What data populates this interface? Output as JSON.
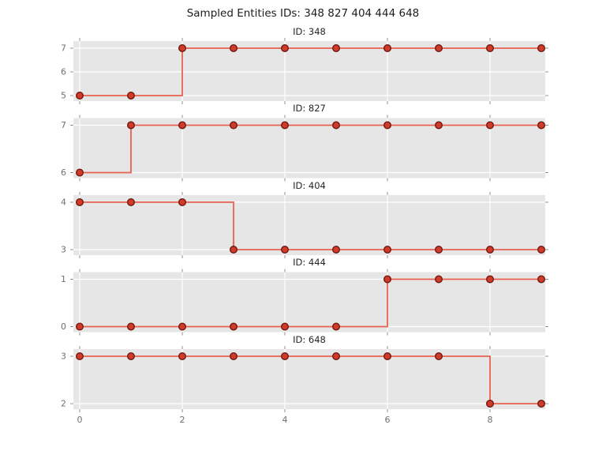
{
  "figure": {
    "title": "Sampled Entities IDs: 348 827 404 444 648",
    "background": "#ffffff"
  },
  "chart_data": {
    "type": "line",
    "drawstyle": "steps-post",
    "marker": "o",
    "x": [
      0,
      1,
      2,
      3,
      4,
      5,
      6,
      7,
      8,
      9
    ],
    "xticks": [
      0,
      2,
      4,
      6,
      8
    ],
    "grid": true,
    "subplots": [
      {
        "title": "ID: 348",
        "values": [
          5,
          5,
          7,
          7,
          7,
          7,
          7,
          7,
          7,
          7
        ],
        "yticks": [
          5,
          6,
          7
        ]
      },
      {
        "title": "ID: 827",
        "values": [
          6,
          7,
          7,
          7,
          7,
          7,
          7,
          7,
          7,
          7
        ],
        "yticks": [
          6,
          7
        ]
      },
      {
        "title": "ID: 404",
        "values": [
          4,
          4,
          4,
          3,
          3,
          3,
          3,
          3,
          3,
          3
        ],
        "yticks": [
          3,
          4
        ]
      },
      {
        "title": "ID: 444",
        "values": [
          0,
          0,
          0,
          0,
          0,
          0,
          1,
          1,
          1,
          1
        ],
        "yticks": [
          0,
          1
        ]
      },
      {
        "title": "ID: 648",
        "values": [
          3,
          3,
          3,
          3,
          3,
          3,
          3,
          3,
          2,
          2
        ],
        "yticks": [
          2,
          3
        ]
      }
    ],
    "style": {
      "line_color": "#e8604e",
      "marker_fill": "#d03a2a",
      "marker_edge": "#6e1a10",
      "panel_color": "#e6e6e6",
      "grid_color": "#ffffff",
      "tick_color": "#909090",
      "tick_label_color": "#707070",
      "subplot_title_color": "#262626"
    }
  }
}
